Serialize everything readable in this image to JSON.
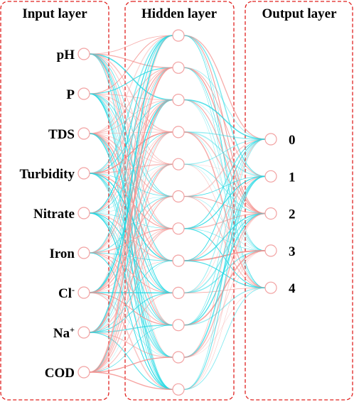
{
  "layers": {
    "input": {
      "title": "Input layer",
      "nodes": [
        {
          "label": "pH"
        },
        {
          "label": "P"
        },
        {
          "label": "TDS"
        },
        {
          "label": "Turbidity"
        },
        {
          "label": "Nitrate"
        },
        {
          "label": "Iron"
        },
        {
          "label": "Cl",
          "sup": "-"
        },
        {
          "label": "Na",
          "sup": "+"
        },
        {
          "label": "COD"
        }
      ]
    },
    "hidden": {
      "title": "Hidden layer",
      "node_count": 12
    },
    "output": {
      "title": "Output layer",
      "nodes": [
        {
          "label": "0"
        },
        {
          "label": "1"
        },
        {
          "label": "2"
        },
        {
          "label": "3"
        },
        {
          "label": "4"
        }
      ]
    }
  },
  "colors": {
    "box_border": "#e0211f",
    "node_stroke": "#f2a2a2",
    "edge_positive": "#f4928f",
    "edge_negative": "#1ed8e3"
  }
}
